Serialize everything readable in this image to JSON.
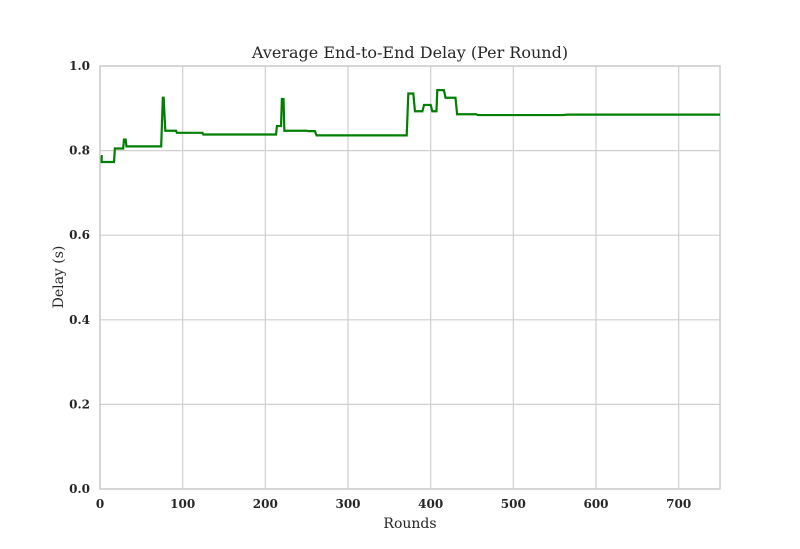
{
  "chart_data": {
    "type": "line",
    "title": "Average End-to-End Delay (Per Round)",
    "xlabel": "Rounds",
    "ylabel": "Delay (s)",
    "xlim": [
      0,
      750
    ],
    "ylim": [
      0.0,
      1.0
    ],
    "xticks": [
      0,
      100,
      200,
      300,
      400,
      500,
      600,
      700
    ],
    "yticks": [
      0.0,
      0.2,
      0.4,
      0.6,
      0.8,
      1.0
    ],
    "ytick_labels": [
      "0.0",
      "0.2",
      "0.4",
      "0.6",
      "0.8",
      "1.0"
    ],
    "grid": true,
    "color": "#007f00",
    "series": [
      {
        "x": [
          1,
          2,
          2,
          17,
          18,
          28,
          29,
          31,
          32,
          74,
          76,
          77,
          79,
          92,
          93,
          124,
          125,
          213,
          214,
          219,
          220,
          222,
          223,
          250,
          252,
          260,
          262,
          371,
          373,
          379,
          381,
          390,
          392,
          400,
          402,
          407,
          408,
          416,
          418,
          430,
          432,
          455,
          457,
          560,
          565,
          750
        ],
        "y": [
          0.787,
          0.787,
          0.773,
          0.773,
          0.805,
          0.805,
          0.826,
          0.826,
          0.81,
          0.81,
          0.925,
          0.925,
          0.847,
          0.847,
          0.842,
          0.842,
          0.838,
          0.838,
          0.858,
          0.858,
          0.922,
          0.922,
          0.847,
          0.847,
          0.846,
          0.846,
          0.836,
          0.836,
          0.935,
          0.935,
          0.893,
          0.893,
          0.908,
          0.908,
          0.893,
          0.893,
          0.943,
          0.943,
          0.925,
          0.925,
          0.886,
          0.886,
          0.884,
          0.884,
          0.885,
          0.885
        ]
      }
    ]
  }
}
